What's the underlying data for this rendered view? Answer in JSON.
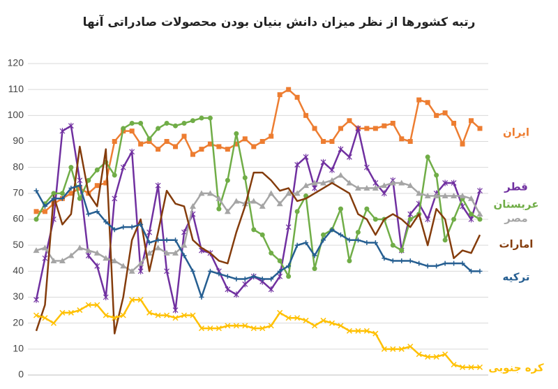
{
  "chart_data": {
    "type": "line",
    "title": "رتبه کشورها از نظر میزان دانش بنیان بودن محصولات صادراتی آنها",
    "categories": [
      null,
      null,
      null,
      null,
      null,
      null,
      null,
      null,
      null,
      null,
      null,
      null,
      null,
      null,
      null,
      null,
      null,
      null,
      null,
      null,
      null,
      null,
      null,
      null,
      null,
      null,
      null,
      null,
      null,
      null,
      null,
      null,
      null,
      null,
      null,
      null,
      null,
      null,
      null,
      null,
      null,
      null,
      null,
      null,
      null,
      null,
      null,
      null,
      null,
      null,
      null,
      null
    ],
    "ylim": [
      0,
      120
    ],
    "yticks": [
      0,
      10,
      20,
      30,
      40,
      50,
      60,
      70,
      80,
      90,
      100,
      110,
      120
    ],
    "grid": true,
    "series": [
      {
        "name": "ایران",
        "color": "#ED7D31",
        "marker": "square",
        "values": [
          63,
          63,
          66,
          68,
          70,
          72,
          70,
          73,
          74,
          90,
          94,
          94,
          89,
          90,
          87,
          90,
          88,
          92,
          85,
          87,
          89,
          88,
          87,
          89,
          91,
          88,
          90,
          92,
          108,
          110,
          107,
          100,
          95,
          90,
          90,
          95,
          98,
          95,
          95,
          95,
          96,
          97,
          91,
          90,
          106,
          105,
          100,
          101,
          97,
          89,
          98,
          95
        ]
      },
      {
        "name": "قطر",
        "color": "#7030A0",
        "marker": "star",
        "values": [
          29,
          45,
          60,
          94,
          96,
          75,
          46,
          42,
          30,
          68,
          80,
          86,
          40,
          55,
          73,
          40,
          25,
          55,
          62,
          48,
          47,
          40,
          33,
          31,
          35,
          38,
          36,
          33,
          38,
          57,
          81,
          84,
          72,
          82,
          79,
          87,
          84,
          95,
          80,
          74,
          70,
          75,
          48,
          62,
          66,
          60,
          70,
          74,
          74,
          65,
          60,
          71
        ]
      },
      {
        "name": "عربستان",
        "color": "#70AD47",
        "marker": "circle",
        "values": [
          60,
          66,
          70,
          70,
          80,
          68,
          75,
          79,
          82,
          77,
          95,
          97,
          97,
          91,
          95,
          97,
          96,
          97,
          98,
          99,
          99,
          64,
          75,
          93,
          76,
          56,
          54,
          47,
          44,
          38,
          63,
          69,
          41,
          54,
          56,
          64,
          44,
          55,
          64,
          60,
          60,
          50,
          48,
          60,
          62,
          84,
          77,
          52,
          60,
          68,
          62,
          60
        ]
      },
      {
        "name": "مصر",
        "color": "#A5A5A5",
        "marker": "triangle",
        "values": [
          48,
          49,
          44,
          44,
          46,
          49,
          48,
          47,
          45,
          44,
          42,
          40,
          43,
          47,
          49,
          47,
          47,
          50,
          65,
          70,
          70,
          68,
          63,
          67,
          66,
          67,
          65,
          70,
          66,
          70,
          70,
          73,
          74,
          74,
          75,
          77,
          74,
          72,
          72,
          72,
          73,
          74,
          74,
          73,
          70,
          69,
          69,
          69,
          69,
          69,
          68,
          62
        ]
      },
      {
        "name": "امارات",
        "color": "#843C0C",
        "marker": "none",
        "values": [
          17,
          27,
          69,
          58,
          62,
          88,
          70,
          65,
          87,
          16,
          30,
          52,
          60,
          40,
          55,
          71,
          66,
          65,
          52,
          49,
          47,
          44,
          43,
          55,
          65,
          78,
          78,
          75,
          71,
          72,
          67,
          68,
          70,
          72,
          74,
          72,
          70,
          62,
          60,
          54,
          60,
          62,
          60,
          57,
          62,
          50,
          64,
          60,
          45,
          48,
          47,
          54
        ]
      },
      {
        "name": "ترکیه",
        "color": "#255E91",
        "marker": "plus",
        "values": [
          71,
          65,
          68,
          68,
          72,
          73,
          62,
          63,
          59,
          56,
          57,
          57,
          58,
          51,
          52,
          52,
          52,
          46,
          40,
          30,
          40,
          39,
          38,
          37,
          37,
          38,
          37,
          37,
          40,
          42,
          50,
          51,
          46,
          52,
          56,
          54,
          52,
          52,
          51,
          51,
          45,
          44,
          44,
          44,
          43,
          42,
          42,
          43,
          43,
          43,
          40,
          40
        ]
      },
      {
        "name": "کره جنوبی",
        "color": "#FFC000",
        "marker": "x",
        "values": [
          23,
          22,
          20,
          24,
          24,
          25,
          27,
          27,
          23,
          22,
          23,
          29,
          29,
          24,
          23,
          23,
          22,
          23,
          23,
          18,
          18,
          18,
          19,
          19,
          19,
          18,
          18,
          19,
          24,
          22,
          22,
          21,
          19,
          21,
          20,
          19,
          17,
          17,
          17,
          16,
          10,
          10,
          10,
          11,
          8,
          7,
          7,
          8,
          4,
          3,
          3,
          3
        ]
      }
    ]
  }
}
